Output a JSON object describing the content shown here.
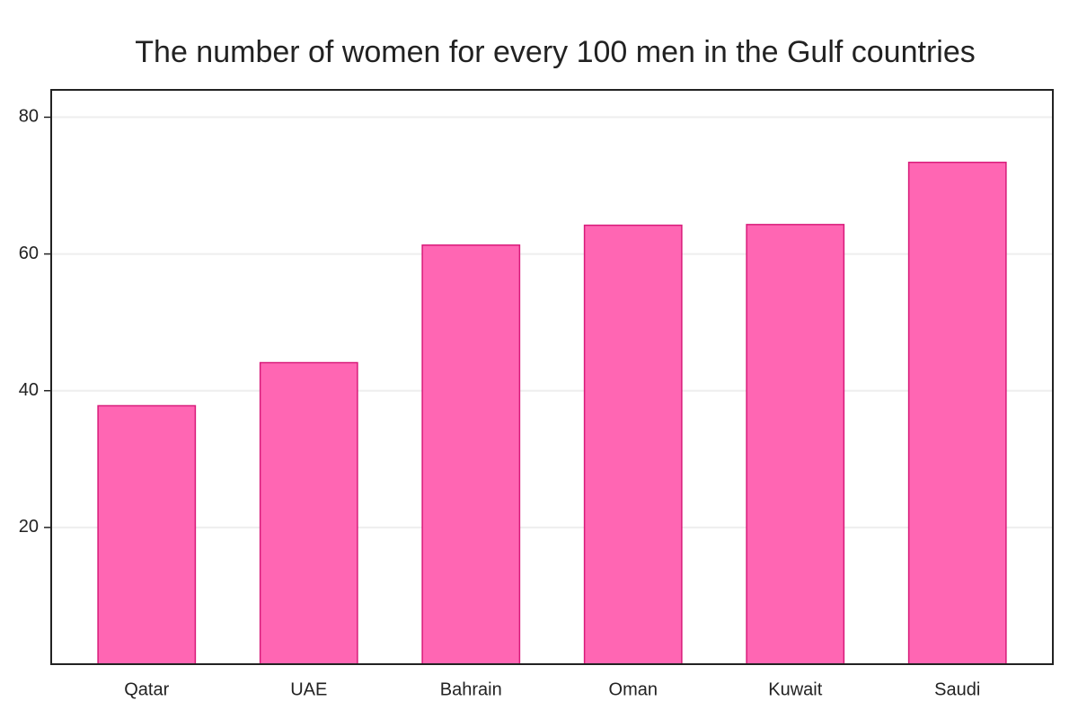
{
  "chart_data": {
    "type": "bar",
    "title": "The number of women for every 100 men in the Gulf countries",
    "categories": [
      "Qatar",
      "UAE",
      "Bahrain",
      "Oman",
      "Kuwait",
      "Saudi"
    ],
    "values": [
      37.8,
      44.1,
      61.3,
      64.2,
      64.3,
      73.4
    ],
    "color": "#ff66b3",
    "ylim": [
      0,
      84
    ],
    "yticks": [
      20,
      40,
      60,
      80
    ],
    "grid": true
  }
}
